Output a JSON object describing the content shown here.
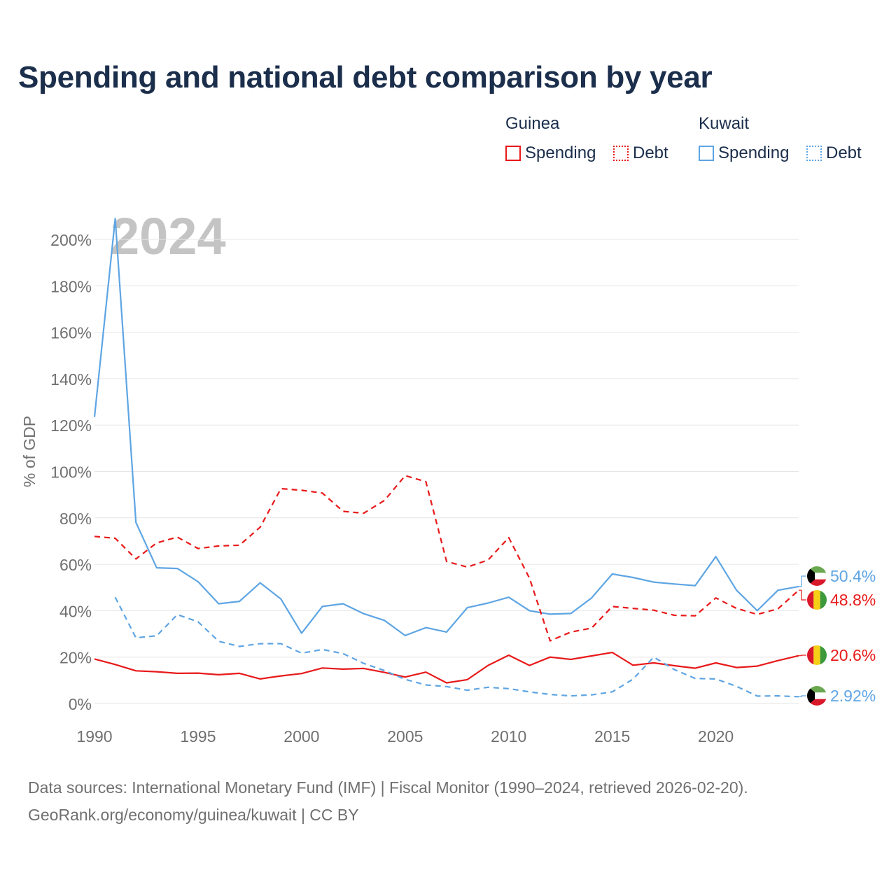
{
  "title": "Spending and national debt comparison by year",
  "legend": {
    "groups": [
      {
        "country": "Guinea",
        "spending_label": "Spending",
        "debt_label": "Debt",
        "color": "#e8191a"
      },
      {
        "country": "Kuwait",
        "spending_label": "Spending",
        "debt_label": "Debt",
        "color": "#5ea5e3"
      }
    ]
  },
  "source": {
    "line1": "Data sources: International Monetary Fund (IMF) | Fiscal Monitor (1990–2024, retrieved 2026-02-20).",
    "line2": "GeoRank.org/economy/guinea/kuwait | CC BY"
  },
  "chart_data": {
    "type": "line",
    "title": "Spending and national debt comparison by year",
    "watermark": "2024",
    "xlabel": "",
    "ylabel": "% of GDP",
    "xlim": [
      1990,
      2024
    ],
    "ylim": [
      0,
      210
    ],
    "x_ticks": [
      1990,
      1995,
      2000,
      2005,
      2010,
      2015,
      2020
    ],
    "y_ticks": [
      0,
      20,
      40,
      60,
      80,
      100,
      120,
      140,
      160,
      180,
      200
    ],
    "y_tick_labels": [
      "0%",
      "20%",
      "40%",
      "60%",
      "80%",
      "100%",
      "120%",
      "140%",
      "160%",
      "180%",
      "200%"
    ],
    "grid": true,
    "series": [
      {
        "name": "Kuwait Spending",
        "country": "Kuwait",
        "kind": "spending",
        "color": "#5ea5e3",
        "dashed": false,
        "end_label": "50.4%",
        "points": [
          [
            1990,
            123.5
          ],
          [
            1991,
            209
          ],
          [
            1992,
            78
          ],
          [
            1993,
            58.5
          ],
          [
            1994,
            58.2
          ],
          [
            1995,
            52.5
          ],
          [
            1996,
            43
          ],
          [
            1997,
            44
          ],
          [
            1998,
            52
          ],
          [
            1999,
            45
          ],
          [
            2000,
            30.3
          ],
          [
            2001,
            41.8
          ],
          [
            2002,
            43
          ],
          [
            2003,
            38.7
          ],
          [
            2004,
            35.8
          ],
          [
            2005,
            29.3
          ],
          [
            2006,
            32.7
          ],
          [
            2007,
            30.8
          ],
          [
            2008,
            41.3
          ],
          [
            2009,
            43.3
          ],
          [
            2010,
            45.8
          ],
          [
            2011,
            40
          ],
          [
            2012,
            38.5
          ],
          [
            2013,
            38.8
          ],
          [
            2014,
            45.5
          ],
          [
            2015,
            55.8
          ],
          [
            2016,
            54.3
          ],
          [
            2017,
            52.3
          ],
          [
            2018,
            51.5
          ],
          [
            2019,
            50.8
          ],
          [
            2020,
            63.3
          ],
          [
            2021,
            48.8
          ],
          [
            2022,
            40
          ],
          [
            2023,
            48.8
          ],
          [
            2024,
            50.4
          ]
        ]
      },
      {
        "name": "Guinea Debt",
        "country": "Guinea",
        "kind": "debt",
        "color": "#e8191a",
        "dashed": true,
        "end_label": "48.8%",
        "points": [
          [
            1990,
            72
          ],
          [
            1991,
            71.2
          ],
          [
            1992,
            62.3
          ],
          [
            1993,
            69.2
          ],
          [
            1994,
            71.7
          ],
          [
            1995,
            66.8
          ],
          [
            1996,
            67.9
          ],
          [
            1997,
            68.2
          ],
          [
            1998,
            76
          ],
          [
            1999,
            92.6
          ],
          [
            2000,
            91.9
          ],
          [
            2001,
            90.7
          ],
          [
            2002,
            82.8
          ],
          [
            2003,
            82
          ],
          [
            2004,
            87.5
          ],
          [
            2005,
            98.2
          ],
          [
            2006,
            95.6
          ],
          [
            2007,
            61.2
          ],
          [
            2008,
            58.8
          ],
          [
            2009,
            61.8
          ],
          [
            2010,
            71.5
          ],
          [
            2011,
            54
          ],
          [
            2012,
            27
          ],
          [
            2013,
            30.8
          ],
          [
            2014,
            32.5
          ],
          [
            2015,
            41.8
          ],
          [
            2016,
            41
          ],
          [
            2017,
            40.2
          ],
          [
            2018,
            38
          ],
          [
            2019,
            37.8
          ],
          [
            2020,
            45.5
          ],
          [
            2021,
            41
          ],
          [
            2022,
            38.4
          ],
          [
            2023,
            40.8
          ],
          [
            2024,
            48.8
          ]
        ]
      },
      {
        "name": "Guinea Spending",
        "country": "Guinea",
        "kind": "spending",
        "color": "#e8191a",
        "dashed": false,
        "end_label": "20.6%",
        "points": [
          [
            1990,
            19.2
          ],
          [
            1991,
            16.8
          ],
          [
            1992,
            14.1
          ],
          [
            1993,
            13.7
          ],
          [
            1994,
            13
          ],
          [
            1995,
            13.1
          ],
          [
            1996,
            12.4
          ],
          [
            1997,
            13
          ],
          [
            1998,
            10.6
          ],
          [
            1999,
            11.9
          ],
          [
            2000,
            12.9
          ],
          [
            2001,
            15.3
          ],
          [
            2002,
            14.8
          ],
          [
            2003,
            15.1
          ],
          [
            2004,
            13.4
          ],
          [
            2005,
            11.4
          ],
          [
            2006,
            13.5
          ],
          [
            2007,
            8.9
          ],
          [
            2008,
            10.3
          ],
          [
            2009,
            16.4
          ],
          [
            2010,
            20.8
          ],
          [
            2011,
            16.4
          ],
          [
            2012,
            20
          ],
          [
            2013,
            19
          ],
          [
            2014,
            20.5
          ],
          [
            2015,
            22
          ],
          [
            2016,
            16.5
          ],
          [
            2017,
            17.5
          ],
          [
            2018,
            16.3
          ],
          [
            2019,
            15.2
          ],
          [
            2020,
            17.5
          ],
          [
            2021,
            15.5
          ],
          [
            2022,
            16.1
          ],
          [
            2023,
            18.5
          ],
          [
            2024,
            20.6
          ]
        ]
      },
      {
        "name": "Kuwait Debt",
        "country": "Kuwait",
        "kind": "debt",
        "color": "#5ea5e3",
        "dashed": true,
        "end_label": "2.92%",
        "points": [
          [
            1991,
            45.8
          ],
          [
            1992,
            28.3
          ],
          [
            1993,
            29.2
          ],
          [
            1994,
            38.3
          ],
          [
            1995,
            35.2
          ],
          [
            1996,
            26.8
          ],
          [
            1997,
            24.6
          ],
          [
            1998,
            25.8
          ],
          [
            1999,
            25.8
          ],
          [
            2000,
            21.7
          ],
          [
            2001,
            23.3
          ],
          [
            2002,
            21.5
          ],
          [
            2003,
            17.3
          ],
          [
            2004,
            14.2
          ],
          [
            2005,
            10.4
          ],
          [
            2006,
            8
          ],
          [
            2007,
            7.3
          ],
          [
            2008,
            5.7
          ],
          [
            2009,
            7
          ],
          [
            2010,
            6.4
          ],
          [
            2011,
            5
          ],
          [
            2012,
            3.9
          ],
          [
            2013,
            3.3
          ],
          [
            2014,
            3.7
          ],
          [
            2015,
            5
          ],
          [
            2016,
            10.5
          ],
          [
            2017,
            20
          ],
          [
            2018,
            14.6
          ],
          [
            2019,
            10.8
          ],
          [
            2020,
            10.6
          ],
          [
            2021,
            7.4
          ],
          [
            2022,
            3.2
          ],
          [
            2023,
            3.3
          ],
          [
            2024,
            2.92
          ]
        ]
      }
    ]
  }
}
